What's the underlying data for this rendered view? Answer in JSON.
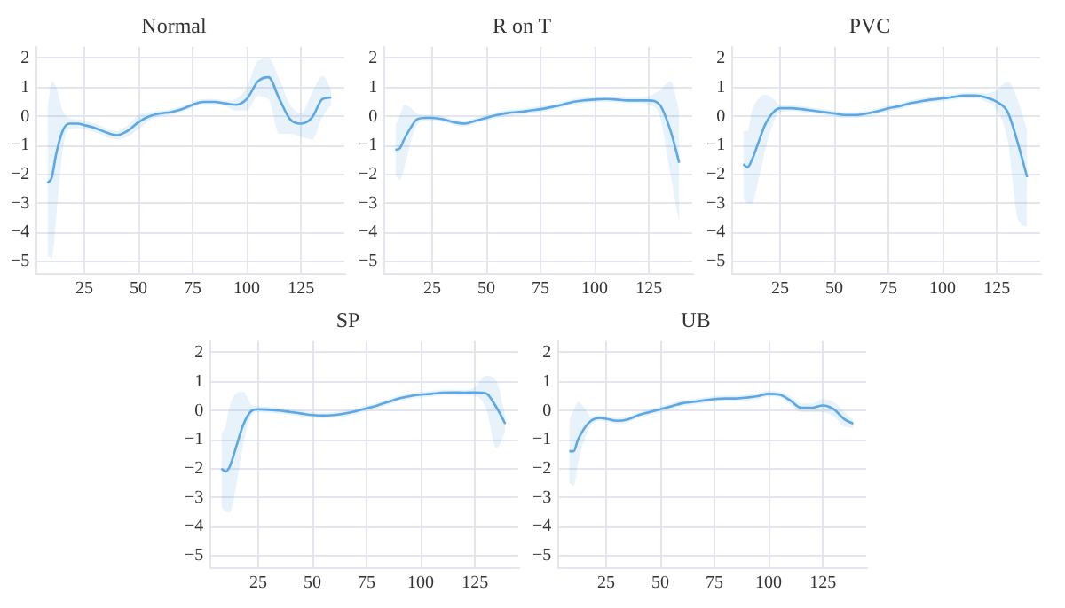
{
  "chart_data": [
    {
      "type": "line",
      "title": "Normal",
      "xlim": [
        3,
        145
      ],
      "xticks": [
        25,
        50,
        75,
        100,
        125
      ],
      "ylim": [
        -5.4,
        2.4
      ],
      "yticks": [
        -5,
        -4,
        -3,
        -2,
        -1,
        0,
        1,
        2
      ],
      "grid": true,
      "marker": "none",
      "x": [
        8,
        10,
        12,
        15,
        18,
        22,
        25,
        30,
        35,
        40,
        45,
        50,
        55,
        60,
        65,
        70,
        75,
        80,
        85,
        90,
        95,
        100,
        105,
        110,
        115,
        120,
        125,
        130,
        135,
        139
      ],
      "series": [
        {
          "color": "#5ba8e5",
          "values": [
            -2.3,
            -2.1,
            -1.3,
            -0.5,
            -0.25,
            -0.25,
            -0.3,
            -0.4,
            -0.55,
            -0.65,
            -0.5,
            -0.2,
            0.0,
            0.1,
            0.15,
            0.25,
            0.4,
            0.5,
            0.5,
            0.45,
            0.4,
            0.6,
            1.2,
            1.35,
            0.6,
            -0.1,
            -0.25,
            -0.05,
            0.6,
            0.65
          ],
          "lower": [
            -4.8,
            -4.9,
            -3.5,
            -1.2,
            -0.45,
            -0.4,
            -0.45,
            -0.55,
            -0.7,
            -0.8,
            -0.7,
            -0.45,
            -0.15,
            0.0,
            0.05,
            0.15,
            0.3,
            0.4,
            0.4,
            0.35,
            0.2,
            0.2,
            0.7,
            0.6,
            -0.6,
            -0.6,
            -0.7,
            -0.8,
            0.0,
            0.4
          ],
          "upper": [
            0.2,
            1.2,
            1.0,
            0.2,
            -0.05,
            -0.1,
            -0.15,
            -0.25,
            -0.4,
            -0.5,
            -0.3,
            0.05,
            0.15,
            0.2,
            0.25,
            0.35,
            0.5,
            0.6,
            0.6,
            0.55,
            0.6,
            1.0,
            1.9,
            2.0,
            1.3,
            0.4,
            0.1,
            0.8,
            1.4,
            0.9
          ]
        }
      ]
    },
    {
      "type": "line",
      "title": "R on T",
      "xlim": [
        3,
        145
      ],
      "xticks": [
        25,
        50,
        75,
        100,
        125
      ],
      "ylim": [
        -5.4,
        2.4
      ],
      "yticks": [
        -5,
        -4,
        -3,
        -2,
        -1,
        0,
        1,
        2
      ],
      "grid": true,
      "marker": "none",
      "x": [
        8,
        10,
        12,
        15,
        18,
        22,
        25,
        30,
        35,
        40,
        45,
        50,
        55,
        60,
        65,
        70,
        75,
        80,
        85,
        90,
        95,
        100,
        105,
        110,
        115,
        120,
        125,
        130,
        135,
        139
      ],
      "series": [
        {
          "color": "#5ba8e5",
          "values": [
            -1.15,
            -1.1,
            -0.8,
            -0.4,
            -0.1,
            -0.05,
            -0.05,
            -0.1,
            -0.2,
            -0.25,
            -0.15,
            -0.05,
            0.05,
            0.12,
            0.15,
            0.2,
            0.25,
            0.32,
            0.4,
            0.5,
            0.55,
            0.58,
            0.6,
            0.58,
            0.55,
            0.55,
            0.55,
            0.4,
            -0.5,
            -1.6
          ],
          "lower": [
            -2.0,
            -2.2,
            -1.8,
            -0.9,
            -0.3,
            -0.15,
            -0.15,
            -0.2,
            -0.3,
            -0.35,
            -0.25,
            -0.15,
            -0.05,
            0.02,
            0.05,
            0.1,
            0.15,
            0.22,
            0.3,
            0.4,
            0.45,
            0.48,
            0.5,
            0.48,
            0.45,
            0.45,
            0.4,
            0.0,
            -2.0,
            -3.7
          ],
          "upper": [
            -0.3,
            0.0,
            0.4,
            0.3,
            0.1,
            0.05,
            0.05,
            0.0,
            -0.1,
            -0.15,
            -0.05,
            0.05,
            0.15,
            0.22,
            0.25,
            0.3,
            0.35,
            0.42,
            0.5,
            0.6,
            0.65,
            0.68,
            0.7,
            0.68,
            0.65,
            0.65,
            0.7,
            0.9,
            1.2,
            0.2
          ]
        }
      ]
    },
    {
      "type": "line",
      "title": "PVC",
      "xlim": [
        3,
        145
      ],
      "xticks": [
        25,
        50,
        75,
        100,
        125
      ],
      "ylim": [
        -5.4,
        2.4
      ],
      "yticks": [
        -5,
        -4,
        -3,
        -2,
        -1,
        0,
        1,
        2
      ],
      "grid": true,
      "marker": "none",
      "x": [
        8,
        10,
        12,
        15,
        18,
        22,
        25,
        30,
        35,
        40,
        45,
        50,
        55,
        60,
        65,
        70,
        75,
        80,
        85,
        90,
        95,
        100,
        105,
        110,
        115,
        120,
        125,
        130,
        135,
        139
      ],
      "series": [
        {
          "color": "#5ba8e5",
          "values": [
            -1.65,
            -1.75,
            -1.5,
            -0.9,
            -0.3,
            0.15,
            0.28,
            0.28,
            0.25,
            0.2,
            0.15,
            0.1,
            0.05,
            0.05,
            0.1,
            0.18,
            0.28,
            0.35,
            0.45,
            0.52,
            0.58,
            0.62,
            0.67,
            0.72,
            0.72,
            0.65,
            0.5,
            0.15,
            -1.0,
            -2.1
          ],
          "lower": [
            -2.8,
            -3.0,
            -3.0,
            -2.2,
            -1.2,
            -0.2,
            0.15,
            0.18,
            0.15,
            0.1,
            0.05,
            0.0,
            -0.05,
            -0.05,
            0.0,
            0.08,
            0.18,
            0.25,
            0.35,
            0.42,
            0.48,
            0.52,
            0.57,
            0.62,
            0.62,
            0.5,
            0.2,
            -0.8,
            -3.6,
            -3.8
          ],
          "upper": [
            -0.5,
            -0.5,
            0.2,
            0.6,
            0.75,
            0.6,
            0.4,
            0.38,
            0.35,
            0.3,
            0.25,
            0.2,
            0.15,
            0.15,
            0.2,
            0.28,
            0.38,
            0.45,
            0.55,
            0.62,
            0.68,
            0.72,
            0.77,
            0.82,
            0.82,
            0.8,
            0.9,
            1.2,
            0.5,
            -0.5
          ]
        }
      ]
    },
    {
      "type": "line",
      "title": "SP",
      "xlim": [
        3,
        145
      ],
      "xticks": [
        25,
        50,
        75,
        100,
        125
      ],
      "ylim": [
        -5.4,
        2.4
      ],
      "yticks": [
        -5,
        -4,
        -3,
        -2,
        -1,
        0,
        1,
        2
      ],
      "grid": true,
      "marker": "none",
      "x": [
        8,
        10,
        12,
        15,
        18,
        22,
        25,
        30,
        35,
        40,
        45,
        50,
        55,
        60,
        65,
        70,
        75,
        80,
        85,
        90,
        95,
        100,
        105,
        110,
        115,
        120,
        125,
        130,
        135,
        139
      ],
      "series": [
        {
          "color": "#5ba8e5",
          "values": [
            -2.0,
            -2.1,
            -1.9,
            -1.2,
            -0.5,
            0.0,
            0.05,
            0.03,
            0.0,
            -0.05,
            -0.1,
            -0.15,
            -0.17,
            -0.15,
            -0.1,
            -0.02,
            0.08,
            0.18,
            0.3,
            0.42,
            0.5,
            0.55,
            0.58,
            0.62,
            0.63,
            0.62,
            0.63,
            0.6,
            0.1,
            -0.45
          ],
          "lower": [
            -3.3,
            -3.5,
            -3.5,
            -2.5,
            -1.2,
            -0.15,
            -0.05,
            -0.07,
            -0.1,
            -0.15,
            -0.2,
            -0.25,
            -0.27,
            -0.25,
            -0.2,
            -0.12,
            -0.02,
            0.08,
            0.2,
            0.32,
            0.4,
            0.45,
            0.48,
            0.52,
            0.53,
            0.52,
            0.5,
            0.1,
            -1.3,
            -0.7
          ],
          "upper": [
            -0.8,
            -0.5,
            0.2,
            0.6,
            0.65,
            0.2,
            0.15,
            0.13,
            0.1,
            0.05,
            0.0,
            -0.05,
            -0.07,
            -0.05,
            0.0,
            0.08,
            0.18,
            0.28,
            0.4,
            0.52,
            0.6,
            0.65,
            0.68,
            0.72,
            0.73,
            0.72,
            0.8,
            1.2,
            1.0,
            -0.2
          ]
        }
      ]
    },
    {
      "type": "line",
      "title": "UB",
      "xlim": [
        3,
        145
      ],
      "xticks": [
        25,
        50,
        75,
        100,
        125
      ],
      "ylim": [
        -5.4,
        2.4
      ],
      "yticks": [
        -5,
        -4,
        -3,
        -2,
        -1,
        0,
        1,
        2
      ],
      "grid": true,
      "marker": "none",
      "x": [
        8,
        10,
        12,
        15,
        18,
        22,
        25,
        30,
        35,
        40,
        45,
        50,
        55,
        60,
        65,
        70,
        75,
        80,
        85,
        90,
        95,
        100,
        105,
        110,
        115,
        120,
        125,
        130,
        135,
        139
      ],
      "series": [
        {
          "color": "#5ba8e5",
          "values": [
            -1.4,
            -1.4,
            -1.0,
            -0.6,
            -0.35,
            -0.25,
            -0.28,
            -0.35,
            -0.3,
            -0.15,
            -0.05,
            0.05,
            0.15,
            0.25,
            0.3,
            0.35,
            0.4,
            0.42,
            0.42,
            0.45,
            0.5,
            0.58,
            0.55,
            0.35,
            0.1,
            0.1,
            0.18,
            0.05,
            -0.3,
            -0.45
          ],
          "lower": [
            -2.5,
            -2.6,
            -1.8,
            -1.0,
            -0.5,
            -0.35,
            -0.38,
            -0.45,
            -0.4,
            -0.25,
            -0.15,
            -0.05,
            0.05,
            0.15,
            0.2,
            0.25,
            0.3,
            0.32,
            0.32,
            0.35,
            0.4,
            0.48,
            0.45,
            0.2,
            -0.05,
            -0.05,
            -0.05,
            -0.2,
            -0.55,
            -0.6
          ],
          "upper": [
            -0.3,
            0.0,
            0.3,
            0.1,
            -0.2,
            -0.15,
            -0.18,
            -0.25,
            -0.2,
            -0.05,
            0.05,
            0.15,
            0.25,
            0.35,
            0.4,
            0.45,
            0.5,
            0.52,
            0.52,
            0.55,
            0.6,
            0.68,
            0.65,
            0.5,
            0.25,
            0.25,
            0.4,
            0.3,
            -0.05,
            -0.3
          ]
        }
      ]
    }
  ]
}
